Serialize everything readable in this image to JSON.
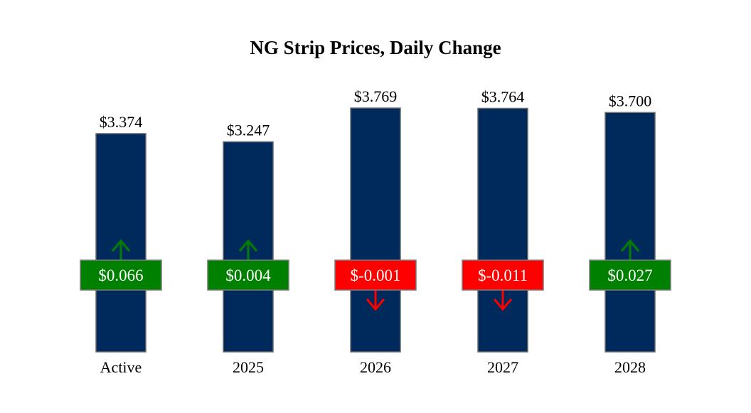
{
  "chart_data": {
    "type": "bar",
    "title": "NG Strip Prices, Daily Change",
    "categories": [
      "Active",
      "2025",
      "2026",
      "2027",
      "2028"
    ],
    "values": [
      3.374,
      3.247,
      3.769,
      3.764,
      3.7
    ],
    "value_labels": [
      "$3.374",
      "$3.247",
      "$3.769",
      "$3.764",
      "$3.700"
    ],
    "changes": [
      0.066,
      0.004,
      -0.001,
      -0.011,
      0.027
    ],
    "change_labels": [
      "$0.066",
      "$0.004",
      "$-0.001",
      "$-0.011",
      "$0.027"
    ],
    "ylim": [
      0,
      3.769
    ],
    "grid": false,
    "legend": "none",
    "colors": {
      "bar": "#002a5c",
      "bar_border": "#6b6b6b",
      "up": "#008000",
      "down": "#ff0000",
      "up_icon": "up-arrow-icon",
      "down_icon": "down-arrow-icon"
    }
  }
}
